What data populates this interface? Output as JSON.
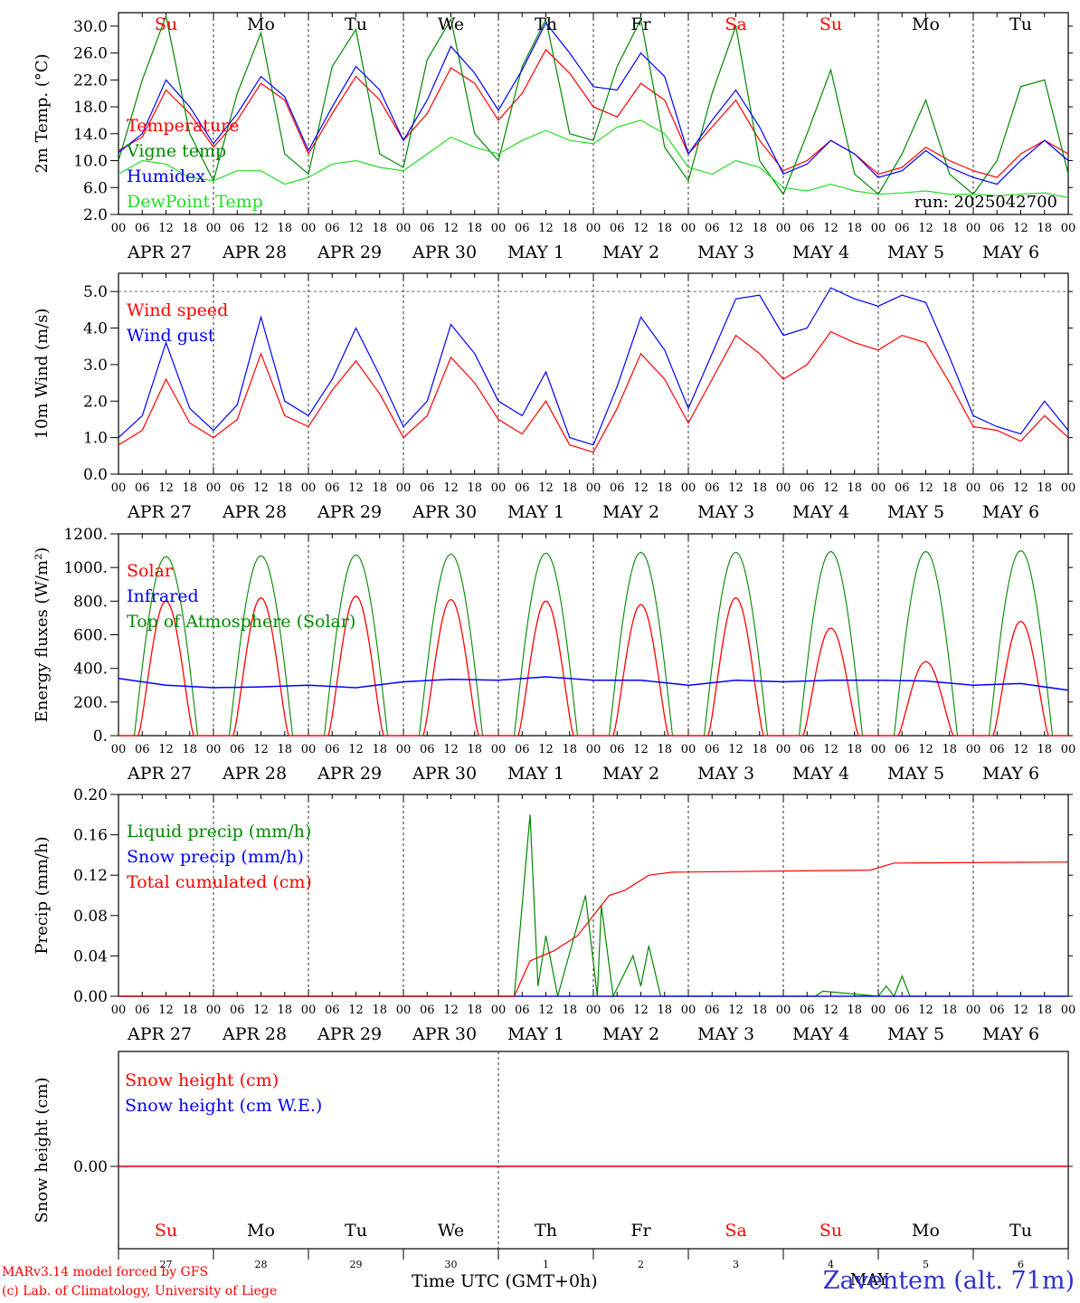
{
  "footer": {
    "model": "MARv3.14 model forced by GFS",
    "lab": "(c) Lab. of Climatology, University of Liege",
    "station": "Zaventem (alt. 71m)",
    "time_axis": "Time UTC (GMT+0h)",
    "month_label": "MAY"
  },
  "colors": {
    "red": "#ff0000",
    "green": "#008800",
    "blue": "#0000ff",
    "lime": "#22dd22",
    "weekend": "#ff0000"
  },
  "days": [
    {
      "wd": "Su",
      "date": "APR 27",
      "num": "27",
      "weekend": true
    },
    {
      "wd": "Mo",
      "date": "APR 28",
      "num": "28",
      "weekend": false
    },
    {
      "wd": "Tu",
      "date": "APR 29",
      "num": "29",
      "weekend": false
    },
    {
      "wd": "We",
      "date": "APR 30",
      "num": "30",
      "weekend": false
    },
    {
      "wd": "Th",
      "date": "MAY  1",
      "num": "1",
      "weekend": false
    },
    {
      "wd": "Fr",
      "date": "MAY  2",
      "num": "2",
      "weekend": false
    },
    {
      "wd": "Sa",
      "date": "MAY  3",
      "num": "3",
      "weekend": true
    },
    {
      "wd": "Su",
      "date": "MAY  4",
      "num": "4",
      "weekend": true
    },
    {
      "wd": "Mo",
      "date": "MAY  5",
      "num": "5",
      "weekend": false
    },
    {
      "wd": "Tu",
      "date": "MAY  6",
      "num": "6",
      "weekend": false
    }
  ],
  "hour_ticks": [
    "00",
    "06",
    "12",
    "18"
  ],
  "chart_data": [
    {
      "type": "line",
      "id": "temp",
      "ylabel": "2m Temp. (°C)",
      "ylim": [
        2,
        32
      ],
      "yticks": [
        2.0,
        6.0,
        10.0,
        14.0,
        18.0,
        22.0,
        26.0,
        30.0
      ],
      "ytick_labels": [
        "2.0",
        "6.0",
        "10.0",
        "14.0",
        "18.0",
        "22.0",
        "26.0",
        "30.0"
      ],
      "annotation": "run: 2025042700",
      "weekday_labels": true,
      "x_hours": [
        0,
        6,
        12,
        18,
        24,
        30,
        36,
        42,
        48,
        54,
        60,
        66,
        72,
        78,
        84,
        90,
        96,
        102,
        108,
        114,
        120,
        126,
        132,
        138,
        144,
        150,
        156,
        162,
        168,
        174,
        180,
        186,
        192,
        198,
        204,
        210,
        216,
        222,
        228,
        234,
        240
      ],
      "series": [
        {
          "name": "Temperature",
          "color": "#ff0000",
          "values": [
            11.5,
            13.5,
            20.5,
            17,
            12,
            16,
            21.5,
            19,
            11,
            17,
            22.5,
            19,
            13,
            17,
            23.8,
            21.5,
            16,
            20,
            26.5,
            23,
            18,
            16.5,
            21.5,
            19,
            11,
            15,
            19,
            13,
            8.5,
            10,
            13,
            11,
            8,
            9,
            12,
            10,
            8.5,
            7.5,
            11,
            13,
            11
          ]
        },
        {
          "name": "Vigne temp",
          "color": "#008800",
          "values": [
            10,
            22,
            31.5,
            14,
            7,
            20,
            29,
            11,
            8,
            24,
            29.5,
            11,
            9,
            25,
            31,
            14,
            10,
            24,
            31,
            14,
            13,
            24,
            31,
            12,
            7,
            20,
            30,
            10,
            5,
            14,
            23.5,
            8,
            5,
            11,
            19,
            8,
            5,
            10,
            21,
            22,
            8
          ]
        },
        {
          "name": "Humidex",
          "color": "#0000ff",
          "values": [
            11.2,
            14,
            22,
            18,
            12.5,
            17,
            22.5,
            19.5,
            11.5,
            18,
            24,
            20.5,
            13,
            19,
            27,
            23,
            17.5,
            23.5,
            30.5,
            26,
            21,
            20.5,
            26,
            22.5,
            11,
            16,
            20.5,
            15,
            8,
            9.5,
            13,
            11,
            7.5,
            8.5,
            11.5,
            9,
            7.5,
            6.5,
            10,
            13,
            10
          ]
        },
        {
          "name": "DewPoint Temp",
          "color": "#22dd22",
          "values": [
            8,
            10,
            9.5,
            7.5,
            7,
            8.5,
            8.5,
            6.5,
            7.5,
            9.5,
            10,
            9,
            8.5,
            11,
            13.5,
            12,
            11,
            13,
            14.5,
            13,
            12.5,
            15,
            16,
            14,
            9,
            8,
            10,
            9,
            6,
            5.5,
            6.5,
            5.5,
            5,
            5.2,
            5.5,
            5,
            5,
            4.8,
            5,
            5.2,
            4.5
          ]
        }
      ]
    },
    {
      "type": "line",
      "id": "wind",
      "ylabel": "10m Wind (m/s)",
      "ylim": [
        0,
        5.5
      ],
      "yticks": [
        0,
        1,
        2,
        3,
        4,
        5
      ],
      "ytick_labels": [
        "0.0",
        "1.0",
        "2.0",
        "3.0",
        "4.0",
        "5.0"
      ],
      "ref_line": 5.0,
      "x_hours": [
        0,
        6,
        12,
        18,
        24,
        30,
        36,
        42,
        48,
        54,
        60,
        66,
        72,
        78,
        84,
        90,
        96,
        102,
        108,
        114,
        120,
        126,
        132,
        138,
        144,
        150,
        156,
        162,
        168,
        174,
        180,
        186,
        192,
        198,
        204,
        210,
        216,
        222,
        228,
        234,
        240
      ],
      "series": [
        {
          "name": "Wind speed",
          "color": "#ff0000",
          "values": [
            0.8,
            1.2,
            2.6,
            1.4,
            1.0,
            1.5,
            3.3,
            1.6,
            1.3,
            2.3,
            3.1,
            2.2,
            1.0,
            1.6,
            3.2,
            2.5,
            1.5,
            1.1,
            2.0,
            0.8,
            0.6,
            1.8,
            3.3,
            2.6,
            1.4,
            2.6,
            3.8,
            3.3,
            2.6,
            3.0,
            3.9,
            3.6,
            3.4,
            3.8,
            3.6,
            2.5,
            1.3,
            1.2,
            0.9,
            1.6,
            1.0
          ]
        },
        {
          "name": "Wind gust",
          "color": "#0000ff",
          "values": [
            1.0,
            1.6,
            3.6,
            1.8,
            1.2,
            1.9,
            4.3,
            2.0,
            1.6,
            2.6,
            4.0,
            2.7,
            1.3,
            2.0,
            4.1,
            3.3,
            2.0,
            1.6,
            2.8,
            1.0,
            0.8,
            2.4,
            4.3,
            3.4,
            1.8,
            3.3,
            4.8,
            4.9,
            3.8,
            4.0,
            5.1,
            4.8,
            4.6,
            4.9,
            4.7,
            3.2,
            1.6,
            1.3,
            1.1,
            2.0,
            1.2
          ]
        }
      ]
    },
    {
      "type": "line",
      "id": "energy",
      "ylabel": "Energy fluxes (W/m²)",
      "ylim": [
        0,
        1200
      ],
      "yticks": [
        0,
        200,
        400,
        600,
        800,
        1000,
        1200
      ],
      "ytick_labels": [
        "0.",
        "200.",
        "400.",
        "600.",
        "800.",
        "1000.",
        "1200."
      ],
      "series": [
        {
          "name": "Solar",
          "color": "#ff0000",
          "peaks": [
            800,
            820,
            830,
            810,
            800,
            780,
            820,
            640,
            440,
            680
          ],
          "values_note_none": ""
        },
        {
          "name": "Infrared",
          "color": "#0000ff",
          "values": [
            340,
            300,
            285,
            290,
            300,
            285,
            320,
            335,
            330,
            350,
            330,
            330,
            300,
            330,
            320,
            330,
            330,
            325,
            300,
            310,
            270
          ]
        },
        {
          "name": "Top of Atmosphere (Solar)",
          "color": "#008800",
          "peaks": [
            1065,
            1070,
            1075,
            1080,
            1085,
            1090,
            1090,
            1095,
            1095,
            1100
          ]
        }
      ]
    },
    {
      "type": "line",
      "id": "precip",
      "ylabel": "Precip (mm/h)",
      "ylim": [
        0,
        0.2
      ],
      "yticks": [
        0,
        0.04,
        0.08,
        0.12,
        0.16,
        0.2
      ],
      "ytick_labels": [
        "0.00",
        "0.04",
        "0.08",
        "0.12",
        "0.16",
        "0.20"
      ],
      "series": [
        {
          "name": "Liquid precip (mm/h)",
          "color": "#008800",
          "points": [
            [
              0,
              0
            ],
            [
              100,
              0
            ],
            [
              104,
              0.18
            ],
            [
              106,
              0.01
            ],
            [
              108,
              0.06
            ],
            [
              111,
              0.0
            ],
            [
              118,
              0.1
            ],
            [
              121,
              0.0
            ],
            [
              122,
              0.09
            ],
            [
              125,
              0.0
            ],
            [
              130,
              0.04
            ],
            [
              132,
              0.01
            ],
            [
              134,
              0.05
            ],
            [
              137,
              0.0
            ],
            [
              176,
              0
            ],
            [
              178,
              0.005
            ],
            [
              192,
              0
            ],
            [
              194,
              0.01
            ],
            [
              196,
              0.0
            ],
            [
              198,
              0.02
            ],
            [
              200,
              0.0
            ],
            [
              240,
              0
            ]
          ]
        },
        {
          "name": "Snow precip (mm/h)",
          "color": "#0000ff",
          "points": [
            [
              0,
              0
            ],
            [
              240,
              0
            ]
          ]
        },
        {
          "name": "Total cumulated (cm)",
          "color": "#ff0000",
          "points": [
            [
              0,
              0
            ],
            [
              100,
              0
            ],
            [
              104,
              0.035
            ],
            [
              110,
              0.045
            ],
            [
              116,
              0.06
            ],
            [
              120,
              0.08
            ],
            [
              124,
              0.1
            ],
            [
              128,
              0.105
            ],
            [
              134,
              0.12
            ],
            [
              140,
              0.123
            ],
            [
              190,
              0.125
            ],
            [
              196,
              0.132
            ],
            [
              240,
              0.133
            ]
          ]
        }
      ]
    },
    {
      "type": "line",
      "id": "snow",
      "ylabel": "Snow height (cm)",
      "yticks": [
        0
      ],
      "ytick_labels": [
        "0.00"
      ],
      "series": [
        {
          "name": "Snow height (cm)",
          "color": "#ff0000",
          "points": [
            [
              0,
              0
            ],
            [
              240,
              0
            ]
          ]
        },
        {
          "name": "Snow height (cm W.E.)",
          "color": "#0000ff",
          "points": [
            [
              0,
              0
            ],
            [
              240,
              0
            ]
          ]
        }
      ]
    }
  ]
}
